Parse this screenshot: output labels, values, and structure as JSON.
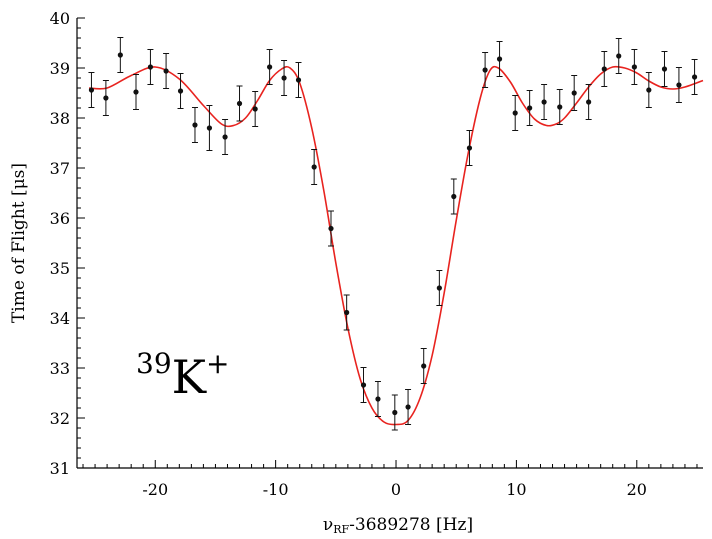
{
  "chart_data": {
    "type": "scatter",
    "xlabel": "ν",
    "xlabel_sub": "RF",
    "xlabel_rest": "-3689278 [Hz]",
    "ylabel": "Time of Flight [μs]",
    "xlim": [
      -26.5,
      25.5
    ],
    "ylim": [
      31,
      40
    ],
    "x_ticks": [
      -20,
      -10,
      0,
      10,
      20
    ],
    "x_tick_labels": [
      "-20",
      "-10",
      "0",
      "10",
      "20"
    ],
    "y_ticks": [
      31,
      32,
      33,
      34,
      35,
      36,
      37,
      38,
      39,
      40
    ],
    "y_tick_labels": [
      "31",
      "32",
      "33",
      "34",
      "35",
      "36",
      "37",
      "38",
      "39",
      "40"
    ],
    "annotation": {
      "mass": "39",
      "element": "K",
      "charge": "+"
    },
    "grid": false,
    "colors": {
      "data": "#111111",
      "fit": "#e8231f",
      "axis": "#000000"
    },
    "series": [
      {
        "kind": "points_with_error",
        "color": "#111111",
        "points": [
          {
            "x": -25.3,
            "y": 38.56,
            "err": 0.35
          },
          {
            "x": -24.1,
            "y": 38.4,
            "err": 0.35
          },
          {
            "x": -22.9,
            "y": 39.26,
            "err": 0.35
          },
          {
            "x": -21.6,
            "y": 38.52,
            "err": 0.35
          },
          {
            "x": -20.4,
            "y": 39.02,
            "err": 0.35
          },
          {
            "x": -19.1,
            "y": 38.94,
            "err": 0.35
          },
          {
            "x": -17.9,
            "y": 38.54,
            "err": 0.35
          },
          {
            "x": -16.7,
            "y": 37.86,
            "err": 0.35
          },
          {
            "x": -15.5,
            "y": 37.8,
            "err": 0.45
          },
          {
            "x": -14.2,
            "y": 37.62,
            "err": 0.35
          },
          {
            "x": -13.0,
            "y": 38.29,
            "err": 0.35
          },
          {
            "x": -11.7,
            "y": 38.18,
            "err": 0.35
          },
          {
            "x": -10.5,
            "y": 39.02,
            "err": 0.35
          },
          {
            "x": -9.3,
            "y": 38.8,
            "err": 0.35
          },
          {
            "x": -8.1,
            "y": 38.76,
            "err": 0.35
          },
          {
            "x": -6.8,
            "y": 37.02,
            "err": 0.35
          },
          {
            "x": -5.4,
            "y": 35.79,
            "err": 0.35
          },
          {
            "x": -4.1,
            "y": 34.11,
            "err": 0.35
          },
          {
            "x": -2.7,
            "y": 32.66,
            "err": 0.35
          },
          {
            "x": -1.5,
            "y": 32.38,
            "err": 0.35
          },
          {
            "x": -0.1,
            "y": 32.11,
            "err": 0.35
          },
          {
            "x": 1.0,
            "y": 32.22,
            "err": 0.35
          },
          {
            "x": 2.3,
            "y": 33.04,
            "err": 0.35
          },
          {
            "x": 3.6,
            "y": 34.6,
            "err": 0.35
          },
          {
            "x": 4.8,
            "y": 36.43,
            "err": 0.35
          },
          {
            "x": 6.1,
            "y": 37.4,
            "err": 0.35
          },
          {
            "x": 7.4,
            "y": 38.96,
            "err": 0.35
          },
          {
            "x": 8.6,
            "y": 39.18,
            "err": 0.35
          },
          {
            "x": 9.9,
            "y": 38.1,
            "err": 0.35
          },
          {
            "x": 11.1,
            "y": 38.2,
            "err": 0.35
          },
          {
            "x": 12.3,
            "y": 38.32,
            "err": 0.35
          },
          {
            "x": 13.6,
            "y": 38.22,
            "err": 0.35
          },
          {
            "x": 14.8,
            "y": 38.5,
            "err": 0.35
          },
          {
            "x": 16.0,
            "y": 38.32,
            "err": 0.35
          },
          {
            "x": 17.3,
            "y": 38.98,
            "err": 0.35
          },
          {
            "x": 18.5,
            "y": 39.24,
            "err": 0.35
          },
          {
            "x": 19.8,
            "y": 39.02,
            "err": 0.35
          },
          {
            "x": 21.0,
            "y": 38.56,
            "err": 0.35
          },
          {
            "x": 22.3,
            "y": 38.98,
            "err": 0.35
          },
          {
            "x": 23.5,
            "y": 38.66,
            "err": 0.35
          },
          {
            "x": 24.8,
            "y": 38.82,
            "err": 0.35
          }
        ]
      },
      {
        "kind": "line",
        "color": "#e8231f",
        "x": [
          -25.5,
          -24,
          -22,
          -20,
          -18,
          -16,
          -14.5,
          -13.5,
          -12.5,
          -11.5,
          -10.5,
          -9.5,
          -8.8,
          -8,
          -7,
          -6,
          -5,
          -4,
          -3,
          -2,
          -1,
          0,
          1,
          2,
          3,
          4,
          5,
          6,
          7,
          7.8,
          8.5,
          9.5,
          10.5,
          11.5,
          12.5,
          13.3,
          14,
          15,
          16,
          17,
          18,
          19,
          20,
          21,
          22,
          23,
          24,
          25.5
        ],
        "y": [
          38.6,
          38.6,
          38.85,
          39.02,
          38.78,
          38.25,
          37.88,
          37.85,
          38.0,
          38.35,
          38.75,
          38.98,
          39.0,
          38.7,
          37.8,
          36.55,
          35.1,
          33.8,
          32.8,
          32.2,
          31.92,
          31.87,
          31.95,
          32.4,
          33.25,
          34.5,
          35.95,
          37.3,
          38.4,
          38.95,
          39.0,
          38.72,
          38.3,
          37.98,
          37.85,
          37.88,
          38.0,
          38.3,
          38.62,
          38.88,
          39.02,
          39.0,
          38.9,
          38.74,
          38.62,
          38.58,
          38.62,
          38.75
        ]
      }
    ]
  }
}
